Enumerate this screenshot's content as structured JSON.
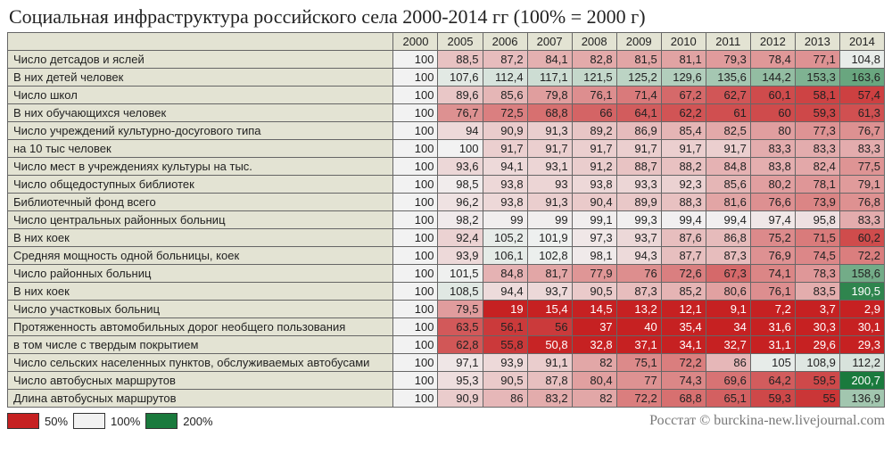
{
  "title": "Социальная инфраструктура российского села 2000-2014 гг (100% = 2000 г)",
  "years": [
    "2000",
    "2005",
    "2006",
    "2007",
    "2008",
    "2009",
    "2010",
    "2011",
    "2012",
    "2013",
    "2014"
  ],
  "legend": {
    "low": "50%",
    "mid": "100%",
    "high": "200%"
  },
  "credit": "Росстат © burckina-new.livejournal.com",
  "palette": {
    "scale_low": {
      "pct": 50,
      "hex": "#c62122"
    },
    "scale_mid": {
      "pct": 100,
      "hex": "#f2f2f2"
    },
    "scale_high": {
      "pct": 200,
      "hex": "#1a7a3d"
    },
    "header_bg": "#e3e3d3",
    "label_bg": "#e3e3d3",
    "border": "#666666",
    "text": "#222222"
  },
  "rows": [
    {
      "label": "Число детсадов и яслей",
      "v": [
        100,
        88.5,
        87.2,
        84.1,
        82.8,
        81.5,
        81.1,
        79.3,
        78.4,
        77.1,
        104.8
      ]
    },
    {
      "label": "В них детей человек",
      "v": [
        100,
        107.6,
        112.4,
        117.1,
        121.5,
        125.2,
        129.6,
        135.6,
        144.2,
        153.3,
        163.6
      ]
    },
    {
      "label": "Число школ",
      "v": [
        100,
        89.6,
        85.6,
        79.8,
        76.1,
        71.4,
        67.2,
        62.7,
        60.1,
        58.1,
        57.4
      ]
    },
    {
      "label": "В них обучающихся человек",
      "v": [
        100,
        76.7,
        72.5,
        68.8,
        66,
        64.1,
        62.2,
        61.0,
        60.0,
        59.3,
        61.3
      ]
    },
    {
      "label": "Число учреждений культурно-досугового типа",
      "v": [
        100,
        94,
        90.9,
        91.3,
        89.2,
        86.9,
        85.4,
        82.5,
        80.0,
        77.3,
        76.7
      ]
    },
    {
      "label": "на 10 тыс человек",
      "v": [
        100,
        100,
        91.7,
        91.7,
        91.7,
        91.7,
        91.7,
        91.7,
        83.3,
        83.3,
        83.3
      ]
    },
    {
      "label": "Число мест в учреждениях культуры на тыс.",
      "v": [
        100,
        93.6,
        94.1,
        93.1,
        91.2,
        88.7,
        88.2,
        84.8,
        83.8,
        82.4,
        77.5
      ]
    },
    {
      "label": "Число общедоступных библиотек",
      "v": [
        100,
        98.5,
        93.8,
        93,
        93.8,
        93.3,
        92.3,
        85.6,
        80.2,
        78.1,
        79.1
      ]
    },
    {
      "label": "Библиотечный фонд всего",
      "v": [
        100,
        96.2,
        93.8,
        91.3,
        90.4,
        89.9,
        88.3,
        81.6,
        76.6,
        73.9,
        76.8
      ]
    },
    {
      "label": "Число центральных районных больниц",
      "v": [
        100,
        98.2,
        99,
        99,
        99.1,
        99.3,
        99.4,
        99.4,
        97.4,
        95.8,
        83.3
      ]
    },
    {
      "label": "В них коек",
      "v": [
        100,
        92.4,
        105.2,
        101.9,
        97.3,
        93.7,
        87.6,
        86.8,
        75.2,
        71.5,
        60.2
      ]
    },
    {
      "label": "Средняя мощность одной больницы, коек",
      "v": [
        100,
        93.9,
        106.1,
        102.8,
        98.1,
        94.3,
        87.7,
        87.3,
        76.9,
        74.5,
        72.2
      ]
    },
    {
      "label": "Число районных больниц",
      "v": [
        100,
        101.5,
        84.8,
        81.7,
        77.9,
        76,
        72.6,
        67.3,
        74.1,
        78.3,
        158.6
      ]
    },
    {
      "label": "В них коек",
      "v": [
        100,
        108.5,
        94.4,
        93.7,
        90.5,
        87.3,
        85.2,
        80.6,
        76.1,
        83.5,
        190.5
      ]
    },
    {
      "label": "Число участковых больниц",
      "v": [
        100,
        79.5,
        19,
        15.4,
        14.5,
        13.2,
        12.1,
        9.1,
        7.2,
        3.7,
        2.9
      ]
    },
    {
      "label": "Протяженность автомобильных дорог необщего пользования",
      "v": [
        100,
        63.5,
        56.1,
        56,
        37,
        40,
        35.4,
        34.0,
        31.6,
        30.3,
        30.1
      ]
    },
    {
      "label": "в том числе с твердым покрытием",
      "v": [
        100,
        62.8,
        55.8,
        50.8,
        32.8,
        37.1,
        34.1,
        32.7,
        31.1,
        29.6,
        29.3
      ]
    },
    {
      "label": "Число сельских населенных пунктов, обслуживаемых автобусами",
      "v": [
        100,
        97.1,
        93.9,
        91.1,
        82,
        75.1,
        72.2,
        86.0,
        105.0,
        108.9,
        112.2
      ]
    },
    {
      "label": "Число автобусных маршрутов",
      "v": [
        100,
        95.3,
        90.5,
        87.8,
        80.4,
        77,
        74.3,
        69.6,
        64.2,
        59.5,
        200.7
      ]
    },
    {
      "label": "Длина автобусных маршрутов",
      "v": [
        100,
        90.9,
        86,
        83.2,
        82,
        72.2,
        68.8,
        65.1,
        59.3,
        55.0,
        136.9
      ]
    }
  ]
}
